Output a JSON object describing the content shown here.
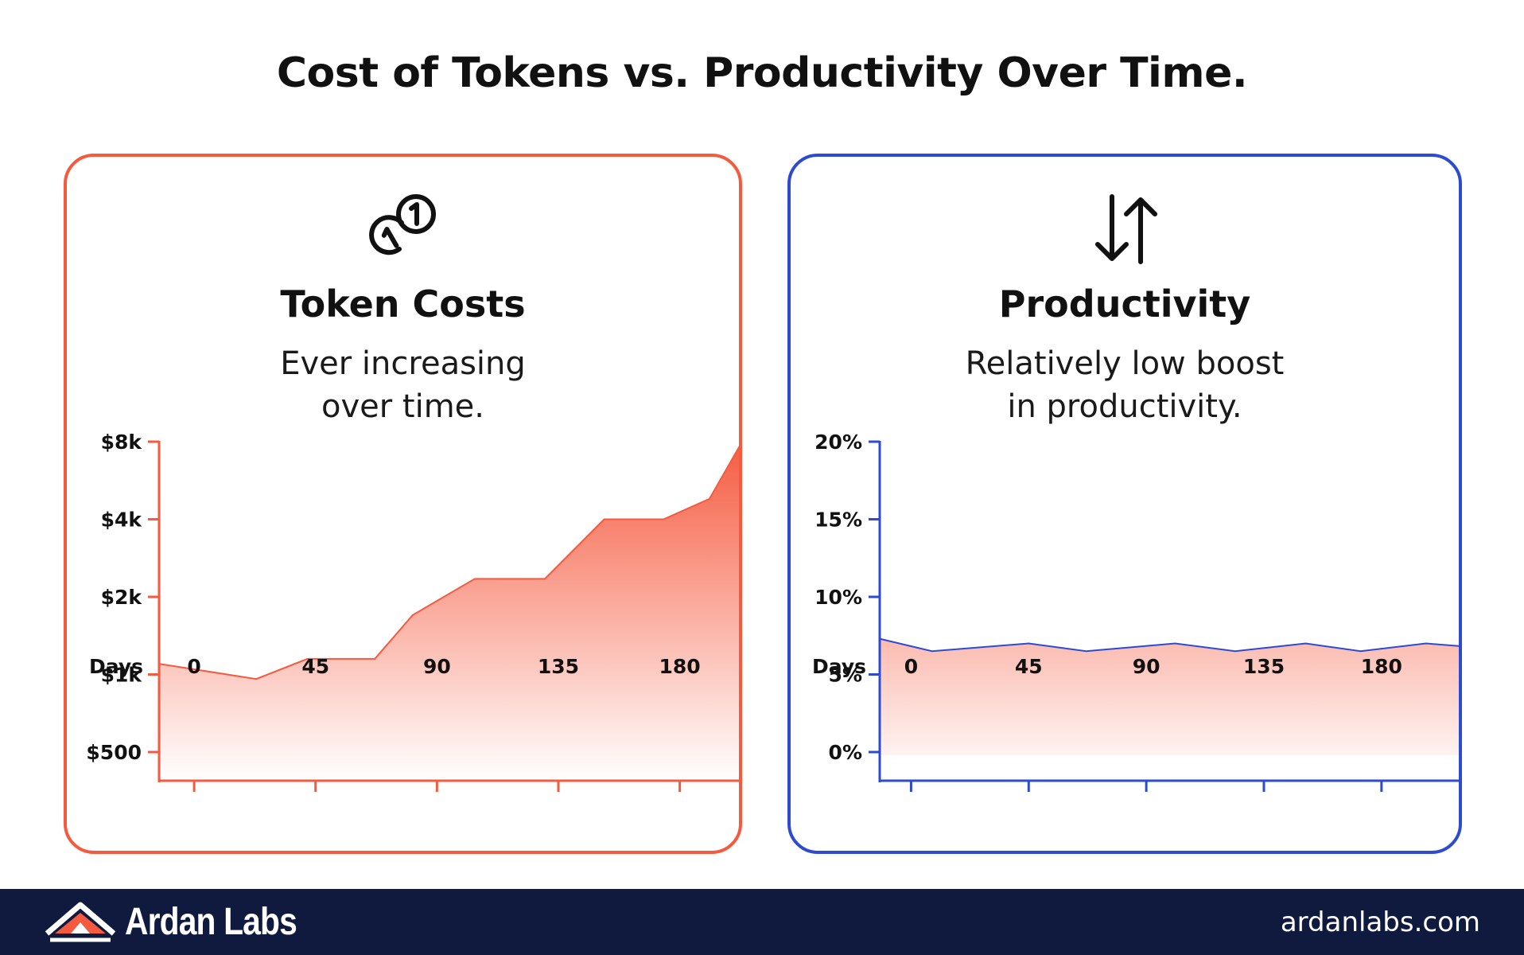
{
  "title": "Cost of Tokens vs. Productivity Over Time.",
  "cards": {
    "token": {
      "icon": "coins-icon",
      "heading": "Token Costs",
      "subtitle_line1": "Ever increasing",
      "subtitle_line2": "over time.",
      "accent": "#f55a3f"
    },
    "productivity": {
      "icon": "up-down-arrows-icon",
      "heading": "Productivity",
      "subtitle_line1": "Relatively low boost",
      "subtitle_line2": "in productivity.",
      "accent": "#2d4bd1"
    }
  },
  "chart_data": [
    {
      "type": "area",
      "ylabel": "",
      "xlabel": "Days",
      "y_scale": "log2",
      "x_ticks": [
        0,
        45,
        90,
        135,
        180
      ],
      "y_ticks": [
        500,
        1000,
        2000,
        4000,
        8000
      ],
      "y_tick_labels": [
        "$500",
        "$1k",
        "$2k",
        "$4k",
        "$8k"
      ],
      "xlim": [
        -13,
        204
      ],
      "ylim": [
        500,
        8000
      ],
      "x": [
        -13,
        23,
        42,
        67,
        81,
        104,
        130,
        152,
        174,
        191,
        204
      ],
      "y": [
        1100,
        960,
        1150,
        1150,
        1700,
        2350,
        2350,
        4000,
        4000,
        4800,
        8300
      ],
      "color": "#f55a3f",
      "grid": false,
      "legend": "none"
    },
    {
      "type": "area",
      "ylabel": "",
      "xlabel": "Days",
      "y_scale": "linear",
      "x_ticks": [
        0,
        45,
        90,
        135,
        180
      ],
      "y_ticks": [
        0,
        5,
        10,
        15,
        20
      ],
      "y_tick_labels": [
        "0%",
        "5%",
        "10%",
        "15%",
        "20%"
      ],
      "xlim": [
        -12,
        212
      ],
      "ylim": [
        0,
        20
      ],
      "x": [
        -12,
        8,
        45,
        67,
        101,
        124,
        151,
        172,
        197,
        212
      ],
      "y": [
        7.3,
        6.5,
        7.0,
        6.5,
        7.0,
        6.5,
        7.0,
        6.5,
        7.0,
        6.8
      ],
      "color": "#2d4bd1",
      "grid": false,
      "legend": "none"
    }
  ],
  "footer": {
    "brand": "Ardan Labs",
    "website": "ardanlabs.com"
  }
}
